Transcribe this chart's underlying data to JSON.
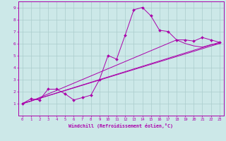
{
  "xlabel": "Windchill (Refroidissement éolien,°C)",
  "xlim": [
    -0.5,
    23.5
  ],
  "ylim": [
    0,
    9.5
  ],
  "xticks": [
    0,
    1,
    2,
    3,
    4,
    5,
    6,
    7,
    8,
    9,
    10,
    11,
    12,
    13,
    14,
    15,
    16,
    17,
    18,
    19,
    20,
    21,
    22,
    23
  ],
  "yticks": [
    1,
    2,
    3,
    4,
    5,
    6,
    7,
    8,
    9
  ],
  "bg_color": "#cce8e8",
  "grid_color": "#aacccc",
  "line_color": "#aa00aa",
  "line1_x": [
    0,
    1,
    2,
    3,
    4,
    5,
    6,
    7,
    8,
    9,
    10,
    11,
    12,
    13,
    14,
    15,
    16,
    17,
    18,
    19,
    20,
    21,
    22,
    23
  ],
  "line1_y": [
    1.0,
    1.4,
    1.3,
    2.2,
    2.2,
    1.8,
    1.3,
    1.5,
    1.7,
    3.0,
    5.0,
    4.7,
    6.7,
    8.8,
    9.0,
    8.3,
    7.1,
    7.0,
    6.3,
    6.3,
    6.2,
    6.5,
    6.3,
    6.1
  ],
  "line2_x": [
    0,
    23
  ],
  "line2_y": [
    1.0,
    6.1
  ],
  "line3_x": [
    0,
    23
  ],
  "line3_y": [
    1.0,
    6.0
  ],
  "line4_x": [
    0,
    1,
    2,
    3,
    4,
    5,
    6,
    7,
    8,
    9,
    10,
    11,
    12,
    13,
    14,
    15,
    16,
    17,
    18,
    19,
    20,
    21,
    22,
    23
  ],
  "line4_y": [
    1.0,
    1.2,
    1.5,
    1.8,
    2.1,
    2.4,
    2.7,
    3.0,
    3.3,
    3.6,
    3.9,
    4.2,
    4.5,
    4.8,
    5.1,
    5.4,
    5.7,
    6.0,
    6.3,
    6.0,
    5.8,
    5.7,
    5.9,
    6.0
  ]
}
